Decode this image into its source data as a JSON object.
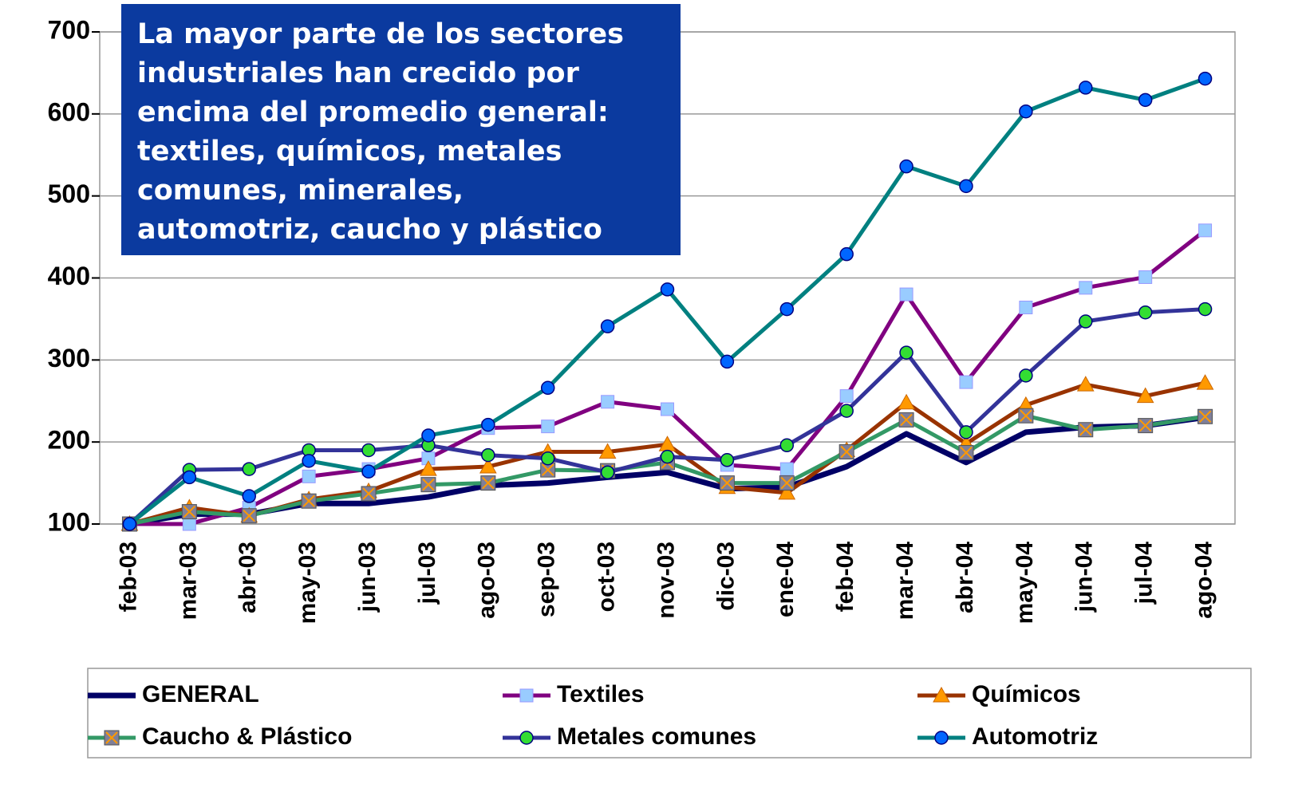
{
  "chart_data": {
    "type": "line",
    "annotation": [
      "La mayor parte de los sectores",
      "industriales han crecido por",
      "encima del promedio general:",
      "textiles, químicos, metales",
      "comunes, minerales,",
      "automotriz, caucho y plástico"
    ],
    "categories": [
      "feb-03",
      "mar-03",
      "abr-03",
      "may-03",
      "jun-03",
      "jul-03",
      "ago-03",
      "sep-03",
      "oct-03",
      "nov-03",
      "dic-03",
      "ene-04",
      "feb-04",
      "mar-04",
      "abr-04",
      "may-04",
      "jun-04",
      "jul-04",
      "ago-04"
    ],
    "ylim": [
      100,
      700
    ],
    "yticks": [
      100,
      200,
      300,
      400,
      500,
      600,
      700
    ],
    "grid": true,
    "series": [
      {
        "name": "GENERAL",
        "color": "#000066",
        "marker": "none",
        "marker_color": "#000066",
        "values": [
          100,
          112,
          112,
          125,
          125,
          133,
          147,
          150,
          157,
          163,
          143,
          145,
          170,
          210,
          175,
          212,
          218,
          220,
          230
        ]
      },
      {
        "name": "Textiles",
        "color": "#800080",
        "marker": "square",
        "marker_color": "#99CCFF",
        "values": [
          100,
          100,
          120,
          158,
          167,
          180,
          217,
          219,
          249,
          240,
          172,
          167,
          256,
          380,
          273,
          364,
          388,
          401,
          458
        ]
      },
      {
        "name": "Químicos",
        "color": "#993300",
        "marker": "triangle",
        "marker_color": "#FF9900",
        "values": [
          100,
          120,
          110,
          130,
          140,
          167,
          170,
          188,
          188,
          197,
          145,
          138,
          190,
          248,
          198,
          245,
          270,
          256,
          272
        ]
      },
      {
        "name": "Caucho & Plástico",
        "color": "#339966",
        "marker": "xsquare",
        "marker_color": "#7F7F99",
        "values": [
          100,
          115,
          110,
          128,
          137,
          148,
          150,
          166,
          165,
          175,
          150,
          150,
          188,
          227,
          187,
          232,
          215,
          220,
          231
        ]
      },
      {
        "name": "Metales comunes",
        "color": "#333399",
        "marker": "circle",
        "marker_color": "#33DD33",
        "values": [
          100,
          166,
          167,
          190,
          190,
          196,
          184,
          180,
          163,
          182,
          178,
          196,
          238,
          309,
          212,
          281,
          347,
          358,
          362
        ]
      },
      {
        "name": "Automotriz",
        "color": "#008080",
        "marker": "circle",
        "marker_color": "#0066FF",
        "values": [
          100,
          157,
          134,
          177,
          164,
          208,
          221,
          266,
          341,
          386,
          298,
          362,
          429,
          536,
          512,
          603,
          632,
          617,
          643
        ]
      }
    ]
  }
}
